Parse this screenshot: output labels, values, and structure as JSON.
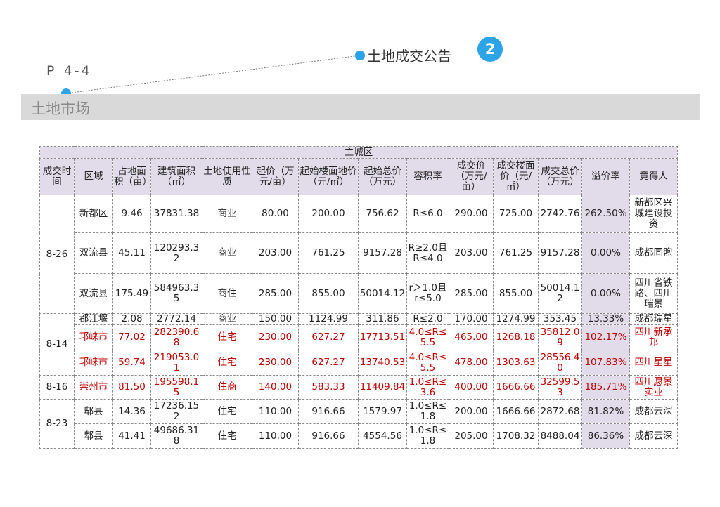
{
  "page_number": "P 4-4",
  "section_title": "土地市场",
  "announcement_title": "土地成交公告",
  "badge_number": "2",
  "colors": {
    "accent": "#2da4e8",
    "header_bg": "#e2dcea",
    "highlight_red": "#c00000",
    "title_bar_bg": "#d9d9d9"
  },
  "table": {
    "group_header": "主城区",
    "columns": [
      "成交时间",
      "区域",
      "占地面积（亩）",
      "建筑面积（㎡）",
      "土地使用性质",
      "起价（万元/亩）",
      "起始楼面地价（元/㎡）",
      "起始总价（万元）",
      "容积率",
      "成交价（万元/亩）",
      "成交楼面价（元/㎡）",
      "成交总价（万元）",
      "溢价率",
      "竟得人"
    ],
    "groups": [
      {
        "date": "8-26",
        "rows": [
          {
            "red": false,
            "cells": [
              "新都区",
              "9.46",
              "37831.38",
              "商业",
              "80.00",
              "200.00",
              "756.62",
              "R≤6.0",
              "290.00",
              "725.00",
              "2742.76",
              "262.50%",
              "新都区兴城建设投资"
            ]
          },
          {
            "red": false,
            "cells": [
              "双流县",
              "45.11",
              "120293.32",
              "商业",
              "203.00",
              "761.25",
              "9157.28",
              "R≥2.0且R≤4.0",
              "203.00",
              "761.25",
              "9157.28",
              "0.00%",
              "成都同煦"
            ]
          },
          {
            "red": false,
            "cells": [
              "双流县",
              "175.49",
              "584963.35",
              "商住",
              "285.00",
              "855.00",
              "50014.12",
              "r＞1.0且r≤5.0",
              "285.00",
              "855.00",
              "50014.12",
              "0.00%",
              "四川省铁路、四川瑞景"
            ]
          }
        ]
      },
      {
        "date": "8-14",
        "rows": [
          {
            "red": false,
            "cells": [
              "都江堰",
              "2.08",
              "2772.14",
              "商业",
              "150.00",
              "1124.99",
              "311.86",
              "R≤2.0",
              "170.00",
              "1274.99",
              "353.45",
              "13.33%",
              "成都瑞星"
            ]
          },
          {
            "red": true,
            "cells": [
              "邛崃市",
              "77.02",
              "282390.68",
              "住宅",
              "230.00",
              "627.27",
              "17713.51",
              "4.0≤R≤5.5",
              "465.00",
              "1268.18",
              "35812.09",
              "102.17%",
              "四川新承邦"
            ]
          },
          {
            "red": true,
            "cells": [
              "邛崃市",
              "59.74",
              "219053.01",
              "住宅",
              "230.00",
              "627.27",
              "13740.53",
              "4.0≤R≤5.5",
              "478.00",
              "1303.63",
              "28556.40",
              "107.83%",
              "四川星星"
            ]
          }
        ]
      },
      {
        "date": "8-16",
        "rows": [
          {
            "red": true,
            "cells": [
              "崇州市",
              "81.50",
              "195598.15",
              "住商",
              "140.00",
              "583.33",
              "11409.84",
              "1.0≤R≤3.6",
              "400.00",
              "1666.66",
              "32599.53",
              "185.71%",
              "四川愿景实业"
            ]
          }
        ]
      },
      {
        "date": "8-23",
        "rows": [
          {
            "red": false,
            "cells": [
              "郫县",
              "14.36",
              "17236.152",
              "住宅",
              "110.00",
              "916.66",
              "1579.97",
              "1.0≤R≤1.8",
              "200.00",
              "1666.66",
              "2872.68",
              "81.82%",
              "成都云深"
            ]
          },
          {
            "red": false,
            "cells": [
              "郫县",
              "41.41",
              "49686.318",
              "住宅",
              "110.00",
              "916.66",
              "4554.56",
              "1.0≤R≤1.8",
              "205.00",
              "1708.32",
              "8488.04",
              "86.36%",
              "成都云深"
            ]
          }
        ]
      }
    ]
  }
}
